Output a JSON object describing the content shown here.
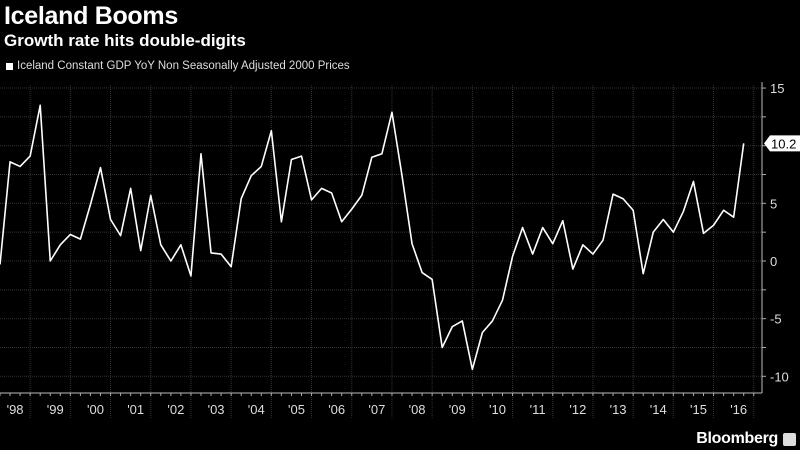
{
  "chart_data": {
    "type": "line",
    "title": "Iceland Booms",
    "subtitle": "Growth rate hits double-digits",
    "series": [
      {
        "name": "Iceland Constant GDP YoY Non Seasonally Adjusted 2000 Prices",
        "color": "#ffffff",
        "start": "1998Q1",
        "frequency": "quarterly",
        "values": [
          -0.3,
          8.6,
          8.2,
          9.1,
          13.5,
          0.0,
          1.4,
          2.3,
          1.9,
          4.9,
          8.1,
          3.6,
          2.2,
          6.3,
          0.9,
          5.7,
          1.4,
          0.0,
          1.4,
          -1.3,
          9.3,
          0.7,
          0.6,
          -0.5,
          5.4,
          7.4,
          8.2,
          11.3,
          3.4,
          8.8,
          9.1,
          5.3,
          6.3,
          5.9,
          3.4,
          4.5,
          5.7,
          9.0,
          9.3,
          12.9,
          7.4,
          1.5,
          -1.0,
          -1.6,
          -7.5,
          -5.7,
          -5.2,
          -9.4,
          -6.2,
          -5.2,
          -3.4,
          0.4,
          2.9,
          0.6,
          2.9,
          1.5,
          3.5,
          -0.7,
          1.4,
          0.6,
          1.8,
          5.8,
          5.4,
          4.4,
          -1.1,
          2.5,
          3.6,
          2.5,
          4.3,
          6.9,
          2.4,
          3.1,
          4.4,
          3.8,
          10.2
        ]
      }
    ],
    "last_value_label": "10.2",
    "x_tick_labels": [
      "'98",
      "'99",
      "'00",
      "'01",
      "'02",
      "'03",
      "'04",
      "'05",
      "'06",
      "'07",
      "'08",
      "'09",
      "'10",
      "'11",
      "'12",
      "'13",
      "'14",
      "'15",
      "'16"
    ],
    "y_ticks": [
      15,
      5,
      0,
      -5,
      -10
    ],
    "y_tick_labels": [
      "15",
      "5",
      "0",
      "-5",
      "-10"
    ],
    "ylim": [
      -11.5,
      15.5
    ],
    "y_axis_side": "right",
    "grid": true,
    "background": "#000000",
    "source": "Bloomberg"
  }
}
